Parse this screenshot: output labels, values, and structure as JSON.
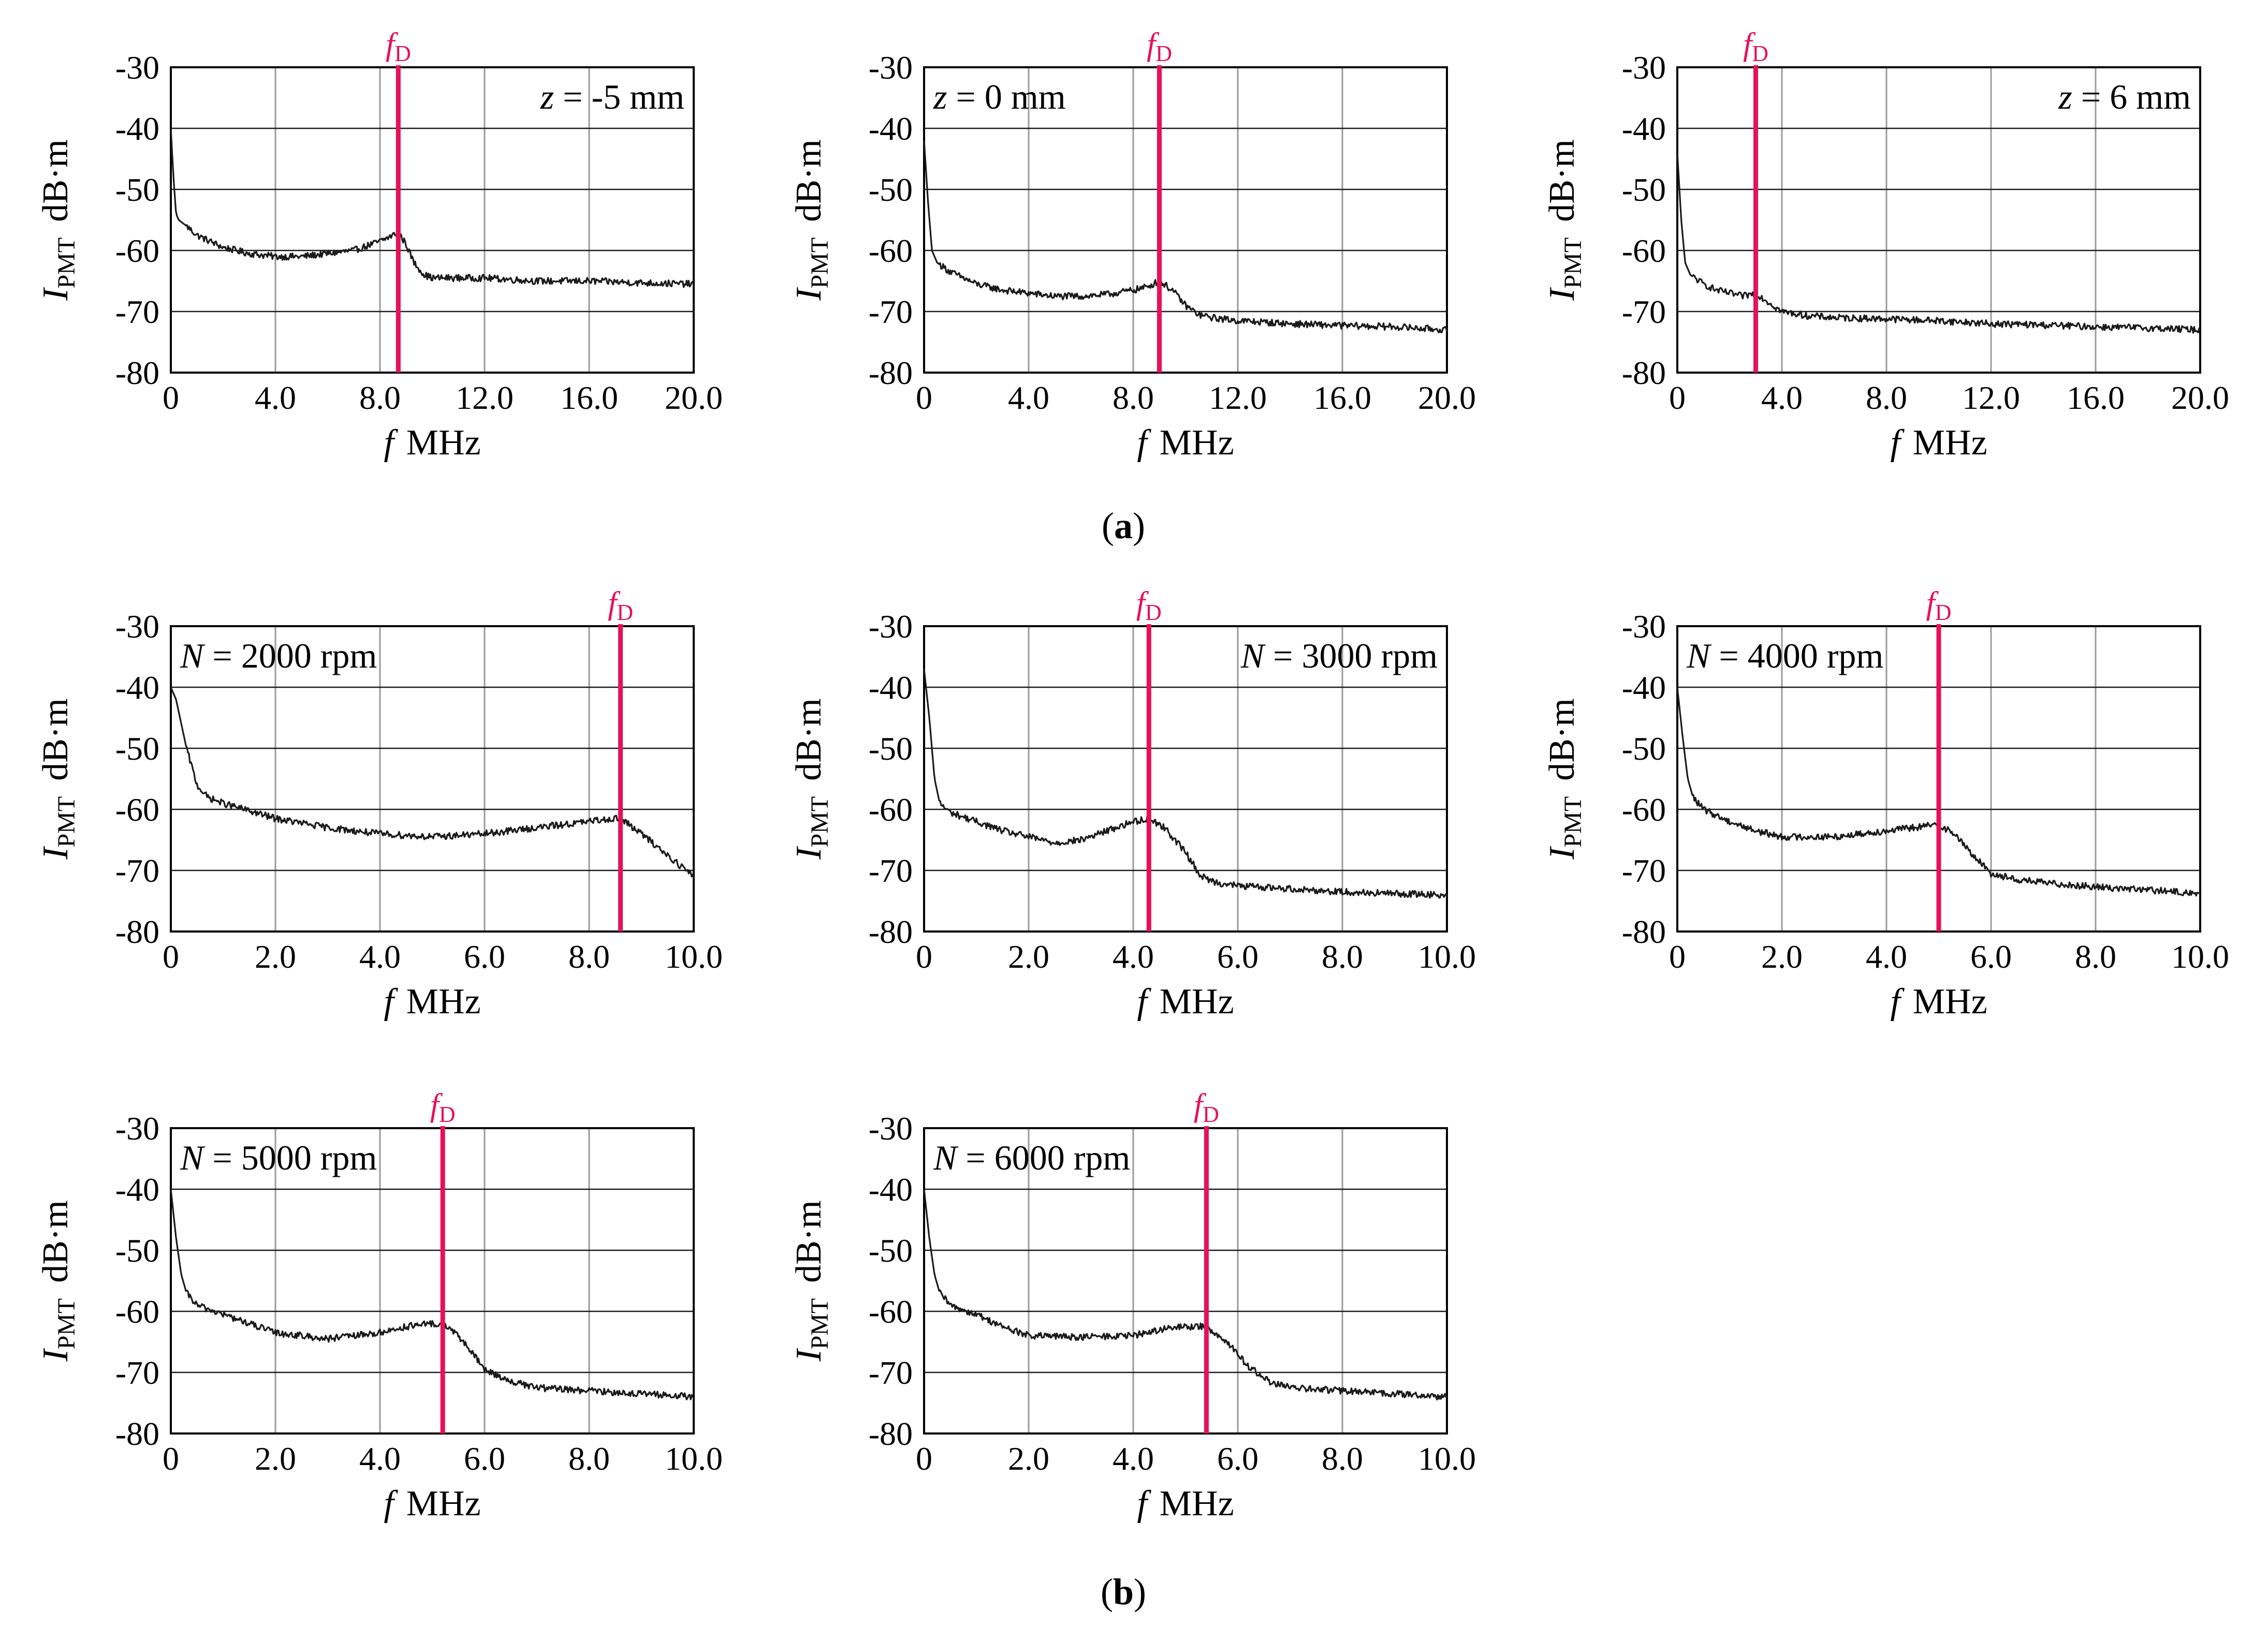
{
  "figure": {
    "panel_labels": {
      "a": "a",
      "b": "b"
    },
    "marker_label": {
      "main": "f",
      "sub": "D"
    },
    "colors": {
      "trace": "#1a1a1a",
      "marker": "#e8105a",
      "grid": "#1a1a1a",
      "grid_light": "#9a9a9a",
      "text": "#000000"
    }
  },
  "chart_data": [
    {
      "type": "line",
      "id": "z-5",
      "group": "a",
      "xlabel": "MHz",
      "xsymbol": "f",
      "ylabel": "dB·m",
      "ysymbol": "I",
      "ysub": "PMT",
      "xlim": [
        0,
        20
      ],
      "ylim": [
        -80,
        -30
      ],
      "xticks": [
        0,
        4,
        8,
        12,
        16,
        20
      ],
      "xtick_labels": [
        "0",
        "4.0",
        "8.0",
        "12.0",
        "16.0",
        "20.0"
      ],
      "yticks": [
        -30,
        -40,
        -50,
        -60,
        -70,
        -80
      ],
      "ytick_labels": [
        "-30",
        "-40",
        "-50",
        "-60",
        "-70",
        "-80"
      ],
      "annotation": {
        "var": "z",
        "text": " = -5 mm",
        "pos": "top-right"
      },
      "marker_x": 8.7,
      "series": [
        {
          "name": "spectrum",
          "x": [
            0,
            0.1,
            0.2,
            0.3,
            0.6,
            1,
            2,
            3,
            4,
            5,
            6,
            7,
            8,
            8.5,
            8.7,
            9.0,
            9.3,
            9.7,
            10,
            12,
            14,
            16,
            18,
            20
          ],
          "y": [
            -40,
            -48,
            -54,
            -55,
            -56,
            -57.5,
            -59.5,
            -60.5,
            -61,
            -61,
            -60.5,
            -60,
            -58.5,
            -57.5,
            -57,
            -59,
            -62,
            -64,
            -64.5,
            -64.5,
            -65,
            -65,
            -65.3,
            -65.5
          ]
        }
      ]
    },
    {
      "type": "line",
      "id": "z0",
      "group": "a",
      "xlabel": "MHz",
      "xsymbol": "f",
      "ylabel": "dB·m",
      "ysymbol": "I",
      "ysub": "PMT",
      "xlim": [
        0,
        20
      ],
      "ylim": [
        -80,
        -30
      ],
      "xticks": [
        0,
        4,
        8,
        12,
        16,
        20
      ],
      "xtick_labels": [
        "0",
        "4.0",
        "8.0",
        "12.0",
        "16.0",
        "20.0"
      ],
      "yticks": [
        -30,
        -40,
        -50,
        -60,
        -70,
        -80
      ],
      "ytick_labels": [
        "-30",
        "-40",
        "-50",
        "-60",
        "-70",
        "-80"
      ],
      "annotation": {
        "var": "z",
        "text": " = 0 mm",
        "pos": "top-left"
      },
      "marker_x": 9.0,
      "series": [
        {
          "name": "spectrum",
          "x": [
            0,
            0.15,
            0.3,
            0.5,
            1,
            2,
            3,
            4,
            5,
            6,
            7,
            8,
            8.5,
            9,
            9.5,
            10,
            10.5,
            11,
            12,
            14,
            16,
            18,
            20
          ],
          "y": [
            -42,
            -52,
            -60,
            -62,
            -63.5,
            -65.5,
            -66.5,
            -67,
            -67.5,
            -67.5,
            -67.2,
            -66.5,
            -66,
            -65,
            -66.5,
            -69,
            -70.5,
            -71,
            -71.5,
            -72,
            -72.3,
            -72.5,
            -73
          ]
        }
      ]
    },
    {
      "type": "line",
      "id": "z6",
      "group": "a",
      "xlabel": "MHz",
      "xsymbol": "f",
      "ylabel": "dB·m",
      "ysymbol": "I",
      "ysub": "PMT",
      "xlim": [
        0,
        20
      ],
      "ylim": [
        -80,
        -30
      ],
      "xticks": [
        0,
        4,
        8,
        12,
        16,
        20
      ],
      "xtick_labels": [
        "0",
        "4.0",
        "8.0",
        "12.0",
        "16.0",
        "20.0"
      ],
      "yticks": [
        -30,
        -40,
        -50,
        -60,
        -70,
        -80
      ],
      "ytick_labels": [
        "-30",
        "-40",
        "-50",
        "-60",
        "-70",
        "-80"
      ],
      "annotation": {
        "var": "z",
        "text": " = 6 mm",
        "pos": "top-right"
      },
      "marker_x": 3.0,
      "series": [
        {
          "name": "spectrum",
          "x": [
            0,
            0.15,
            0.3,
            0.5,
            1,
            1.5,
            2,
            2.5,
            3,
            3.5,
            4,
            5,
            6,
            8,
            10,
            12,
            14,
            16,
            18,
            20
          ],
          "y": [
            -44,
            -55,
            -62,
            -64,
            -65.5,
            -66.5,
            -67,
            -67.5,
            -67,
            -68.5,
            -70,
            -70.7,
            -71,
            -71.2,
            -71.5,
            -72,
            -72.2,
            -72.5,
            -72.7,
            -73
          ]
        }
      ]
    },
    {
      "type": "line",
      "id": "n2000",
      "group": "b",
      "xlabel": "MHz",
      "xsymbol": "f",
      "ylabel": "dB·m",
      "ysymbol": "I",
      "ysub": "PMT",
      "xlim": [
        0,
        10
      ],
      "ylim": [
        -80,
        -30
      ],
      "xticks": [
        0,
        2,
        4,
        6,
        8,
        10
      ],
      "xtick_labels": [
        "0",
        "2.0",
        "4.0",
        "6.0",
        "8.0",
        "10.0"
      ],
      "yticks": [
        -30,
        -40,
        -50,
        -60,
        -70,
        -80
      ],
      "ytick_labels": [
        "-30",
        "-40",
        "-50",
        "-60",
        "-70",
        "-80"
      ],
      "annotation": {
        "var": "N",
        "text": " = 2000 rpm",
        "pos": "top-left"
      },
      "marker_x": 8.6,
      "series": [
        {
          "name": "spectrum",
          "x": [
            0,
            0.1,
            0.3,
            0.5,
            0.7,
            1,
            2,
            3,
            4,
            5,
            6,
            7,
            8,
            8.4,
            8.6,
            9,
            9.5,
            10
          ],
          "y": [
            -40,
            -42,
            -50,
            -56,
            -58,
            -59,
            -61.5,
            -63,
            -64,
            -64.5,
            -64,
            -63,
            -62,
            -61.5,
            -61.5,
            -64,
            -67.5,
            -71
          ]
        }
      ]
    },
    {
      "type": "line",
      "id": "n3000",
      "group": "b",
      "xlabel": "MHz",
      "xsymbol": "f",
      "ylabel": "dB·m",
      "ysymbol": "I",
      "ysub": "PMT",
      "xlim": [
        0,
        10
      ],
      "ylim": [
        -80,
        -30
      ],
      "xticks": [
        0,
        2,
        4,
        6,
        8,
        10
      ],
      "xtick_labels": [
        "0",
        "2.0",
        "4.0",
        "6.0",
        "8.0",
        "10.0"
      ],
      "yticks": [
        -30,
        -40,
        -50,
        -60,
        -70,
        -80
      ],
      "ytick_labels": [
        "-30",
        "-40",
        "-50",
        "-60",
        "-70",
        "-80"
      ],
      "annotation": {
        "var": "N",
        "text": " = 3000 rpm",
        "pos": "top-right"
      },
      "marker_x": 4.3,
      "series": [
        {
          "name": "spectrum",
          "x": [
            0,
            0.1,
            0.2,
            0.3,
            0.5,
            1,
            1.5,
            2,
            2.5,
            3,
            3.5,
            4,
            4.3,
            4.6,
            5,
            5.3,
            5.6,
            6,
            7,
            8,
            9,
            10
          ],
          "y": [
            -37,
            -45,
            -55,
            -59,
            -60.5,
            -62,
            -63.5,
            -64.5,
            -65.5,
            -65,
            -63.5,
            -62,
            -61.5,
            -63,
            -67,
            -71,
            -72,
            -72.5,
            -73,
            -73.5,
            -73.8,
            -74
          ]
        }
      ]
    },
    {
      "type": "line",
      "id": "n4000",
      "group": "b",
      "xlabel": "MHz",
      "xsymbol": "f",
      "ylabel": "dB·m",
      "ysymbol": "I",
      "ysub": "PMT",
      "xlim": [
        0,
        10
      ],
      "ylim": [
        -80,
        -30
      ],
      "xticks": [
        0,
        2,
        4,
        6,
        8,
        10
      ],
      "xtick_labels": [
        "0",
        "2.0",
        "4.0",
        "6.0",
        "8.0",
        "10.0"
      ],
      "yticks": [
        -30,
        -40,
        -50,
        -60,
        -70,
        -80
      ],
      "ytick_labels": [
        "-30",
        "-40",
        "-50",
        "-60",
        "-70",
        "-80"
      ],
      "annotation": {
        "var": "N",
        "text": " = 4000 rpm",
        "pos": "top-left"
      },
      "marker_x": 5.0,
      "series": [
        {
          "name": "spectrum",
          "x": [
            0,
            0.1,
            0.2,
            0.3,
            0.5,
            1,
            1.5,
            2,
            3,
            4,
            4.5,
            5,
            5.3,
            5.6,
            6,
            6.5,
            7,
            8,
            9,
            10
          ],
          "y": [
            -40,
            -48,
            -55,
            -58,
            -60,
            -62,
            -63.5,
            -64.5,
            -64.5,
            -63.5,
            -63,
            -62.5,
            -64,
            -67,
            -70.5,
            -71.5,
            -72,
            -72.7,
            -73.2,
            -73.8
          ]
        }
      ]
    },
    {
      "type": "line",
      "id": "n5000",
      "group": "b",
      "xlabel": "MHz",
      "xsymbol": "f",
      "ylabel": "dB·m",
      "ysymbol": "I",
      "ysub": "PMT",
      "xlim": [
        0,
        10
      ],
      "ylim": [
        -80,
        -30
      ],
      "xticks": [
        0,
        2,
        4,
        6,
        8,
        10
      ],
      "xtick_labels": [
        "0",
        "2.0",
        "4.0",
        "6.0",
        "8.0",
        "10.0"
      ],
      "yticks": [
        -30,
        -40,
        -50,
        -60,
        -70,
        -80
      ],
      "ytick_labels": [
        "-30",
        "-40",
        "-50",
        "-60",
        "-70",
        "-80"
      ],
      "annotation": {
        "var": "N",
        "text": " = 5000 rpm",
        "pos": "top-left"
      },
      "marker_x": 5.2,
      "series": [
        {
          "name": "spectrum",
          "x": [
            0,
            0.1,
            0.2,
            0.3,
            0.5,
            1,
            1.5,
            2,
            3,
            4,
            4.5,
            5,
            5.3,
            5.6,
            6,
            6.5,
            7,
            8,
            9,
            10
          ],
          "y": [
            -40,
            -48,
            -54,
            -57,
            -59,
            -60.5,
            -62,
            -63.5,
            -64.5,
            -63.5,
            -62.5,
            -62,
            -62.5,
            -65,
            -69.5,
            -71.5,
            -72.5,
            -73,
            -73.5,
            -74
          ]
        }
      ]
    },
    {
      "type": "line",
      "id": "n6000",
      "group": "b",
      "xlabel": "MHz",
      "xsymbol": "f",
      "ylabel": "dB·m",
      "ysymbol": "I",
      "ysub": "PMT",
      "xlim": [
        0,
        10
      ],
      "ylim": [
        -80,
        -30
      ],
      "xticks": [
        0,
        2,
        4,
        6,
        8,
        10
      ],
      "xtick_labels": [
        "0",
        "2.0",
        "4.0",
        "6.0",
        "8.0",
        "10.0"
      ],
      "yticks": [
        -30,
        -40,
        -50,
        -60,
        -70,
        -80
      ],
      "ytick_labels": [
        "-30",
        "-40",
        "-50",
        "-60",
        "-70",
        "-80"
      ],
      "annotation": {
        "var": "N",
        "text": " = 6000 rpm",
        "pos": "top-left"
      },
      "marker_x": 5.4,
      "series": [
        {
          "name": "spectrum",
          "x": [
            0,
            0.1,
            0.2,
            0.3,
            0.5,
            1,
            1.5,
            2,
            3,
            4,
            4.5,
            5,
            5.4,
            5.8,
            6.2,
            6.6,
            7,
            8,
            9,
            10
          ],
          "y": [
            -40,
            -48,
            -54,
            -57,
            -59,
            -60.5,
            -62.5,
            -64,
            -64.2,
            -64,
            -63,
            -62.5,
            -62.5,
            -65,
            -69,
            -71.5,
            -72.5,
            -73,
            -73.5,
            -74
          ]
        }
      ]
    }
  ]
}
